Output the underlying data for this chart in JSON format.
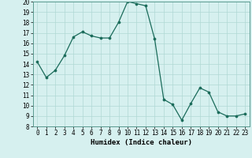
{
  "title": "",
  "xlabel": "Humidex (Indice chaleur)",
  "x": [
    0,
    1,
    2,
    3,
    4,
    5,
    6,
    7,
    8,
    9,
    10,
    11,
    12,
    13,
    14,
    15,
    16,
    17,
    18,
    19,
    20,
    21,
    22,
    23
  ],
  "y": [
    14.2,
    12.7,
    13.4,
    14.8,
    16.6,
    17.1,
    16.7,
    16.5,
    16.5,
    18.0,
    20.0,
    19.8,
    19.6,
    16.4,
    10.6,
    10.1,
    8.6,
    10.2,
    11.7,
    11.3,
    9.4,
    9.0,
    9.0,
    9.2
  ],
  "ylim": [
    8,
    20
  ],
  "xlim_min": -0.5,
  "xlim_max": 23.5,
  "yticks": [
    8,
    9,
    10,
    11,
    12,
    13,
    14,
    15,
    16,
    17,
    18,
    19,
    20
  ],
  "xticks": [
    0,
    1,
    2,
    3,
    4,
    5,
    6,
    7,
    8,
    9,
    10,
    11,
    12,
    13,
    14,
    15,
    16,
    17,
    18,
    19,
    20,
    21,
    22,
    23
  ],
  "line_color": "#1a6b5a",
  "marker_color": "#1a6b5a",
  "bg_color": "#d6f0ef",
  "grid_color": "#b0d8d4",
  "label_fontsize": 6.5,
  "tick_fontsize": 5.5
}
